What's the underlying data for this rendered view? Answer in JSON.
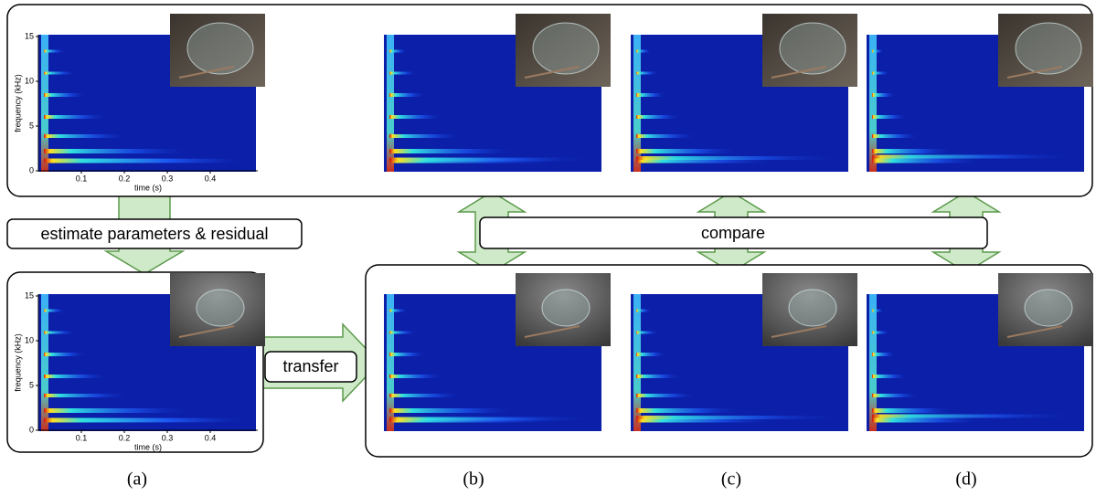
{
  "axis": {
    "ylabel": "frequency (kHz)",
    "xlabel": "time (s)",
    "yticks": [
      15,
      10,
      5,
      0
    ],
    "xticks": [
      0.1,
      0.2,
      0.3,
      0.4
    ]
  },
  "steps": {
    "estimate": "estimate parameters & residual",
    "transfer": "transfer",
    "compare": "compare"
  },
  "captions": [
    "(a)",
    "(b)",
    "(c)",
    "(d)"
  ]
}
